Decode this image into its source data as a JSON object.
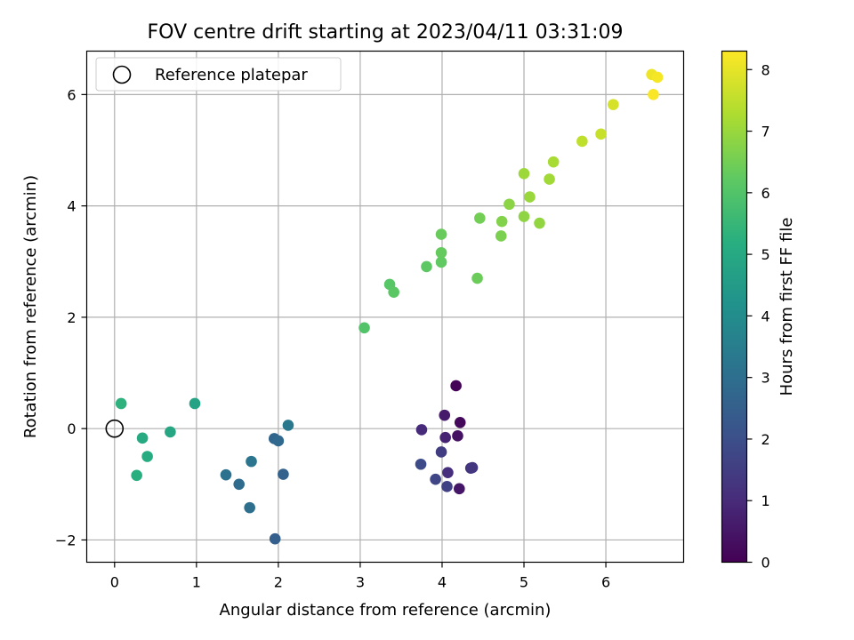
{
  "chart_data": {
    "type": "scatter",
    "title": "FOV centre drift starting at 2023/04/11 03:31:09",
    "xlabel": "Angular distance from reference (arcmin)",
    "ylabel": "Rotation from reference (arcmin)",
    "xlim": [
      -0.34,
      6.95
    ],
    "ylim": [
      -2.4,
      6.78
    ],
    "xticks": [
      0,
      1,
      2,
      3,
      4,
      5,
      6
    ],
    "xtick_labels": [
      "0",
      "1",
      "2",
      "3",
      "4",
      "5",
      "6"
    ],
    "yticks": [
      -2,
      0,
      2,
      4,
      6
    ],
    "ytick_labels": [
      "−2",
      "0",
      "2",
      "4",
      "6"
    ],
    "grid": true,
    "colormap": "viridis",
    "colorbar": {
      "label": "Hours from first FF file",
      "range": [
        0,
        8.3
      ],
      "ticks": [
        0,
        1,
        2,
        3,
        4,
        5,
        6,
        7,
        8
      ],
      "tick_labels": [
        "0",
        "1",
        "2",
        "3",
        "4",
        "5",
        "6",
        "7",
        "8"
      ]
    },
    "legend": {
      "placement": "upper-left",
      "entries": [
        {
          "label": "Reference platepar",
          "marker": "hollow-circle"
        }
      ]
    },
    "reference_point": {
      "x": 0,
      "y": 0
    },
    "points": [
      {
        "x": 4.17,
        "y": 0.77,
        "hours": 0.05
      },
      {
        "x": 4.22,
        "y": 0.11,
        "hours": 0.2
      },
      {
        "x": 4.19,
        "y": -0.13,
        "hours": 0.4
      },
      {
        "x": 4.21,
        "y": -1.08,
        "hours": 0.5
      },
      {
        "x": 4.03,
        "y": 0.24,
        "hours": 0.6
      },
      {
        "x": 4.04,
        "y": -0.16,
        "hours": 0.8
      },
      {
        "x": 3.75,
        "y": -0.02,
        "hours": 1.0
      },
      {
        "x": 4.07,
        "y": -0.79,
        "hours": 1.1
      },
      {
        "x": 4.35,
        "y": -0.71,
        "hours": 1.2
      },
      {
        "x": 4.37,
        "y": -0.7,
        "hours": 1.3
      },
      {
        "x": 3.99,
        "y": -0.42,
        "hours": 1.5
      },
      {
        "x": 4.06,
        "y": -1.04,
        "hours": 1.6
      },
      {
        "x": 3.92,
        "y": -0.91,
        "hours": 1.7
      },
      {
        "x": 3.74,
        "y": -0.64,
        "hours": 1.9
      },
      {
        "x": 1.96,
        "y": -1.98,
        "hours": 2.5
      },
      {
        "x": 2.06,
        "y": -0.82,
        "hours": 2.6
      },
      {
        "x": 1.95,
        "y": -0.18,
        "hours": 2.7
      },
      {
        "x": 2.0,
        "y": -0.22,
        "hours": 2.8
      },
      {
        "x": 1.52,
        "y": -1.0,
        "hours": 2.9
      },
      {
        "x": 1.65,
        "y": -1.42,
        "hours": 3.0
      },
      {
        "x": 1.36,
        "y": -0.83,
        "hours": 3.1
      },
      {
        "x": 1.67,
        "y": -0.59,
        "hours": 3.2
      },
      {
        "x": 2.12,
        "y": 0.06,
        "hours": 3.3
      },
      {
        "x": 0.98,
        "y": 0.45,
        "hours": 4.8
      },
      {
        "x": 0.68,
        "y": -0.06,
        "hours": 4.9
      },
      {
        "x": 0.34,
        "y": -0.17,
        "hours": 5.0
      },
      {
        "x": 0.4,
        "y": -0.5,
        "hours": 5.1
      },
      {
        "x": 0.27,
        "y": -0.84,
        "hours": 5.2
      },
      {
        "x": 0.08,
        "y": 0.45,
        "hours": 5.3
      },
      {
        "x": 3.05,
        "y": 1.81,
        "hours": 6.0
      },
      {
        "x": 3.36,
        "y": 2.59,
        "hours": 6.1
      },
      {
        "x": 3.41,
        "y": 2.45,
        "hours": 6.15
      },
      {
        "x": 3.81,
        "y": 2.91,
        "hours": 6.2
      },
      {
        "x": 3.99,
        "y": 2.99,
        "hours": 6.25
      },
      {
        "x": 3.99,
        "y": 3.16,
        "hours": 6.3
      },
      {
        "x": 3.99,
        "y": 3.49,
        "hours": 6.35
      },
      {
        "x": 4.43,
        "y": 2.7,
        "hours": 6.4
      },
      {
        "x": 4.46,
        "y": 3.78,
        "hours": 6.5
      },
      {
        "x": 4.72,
        "y": 3.46,
        "hours": 6.6
      },
      {
        "x": 4.73,
        "y": 3.72,
        "hours": 6.7
      },
      {
        "x": 4.82,
        "y": 4.03,
        "hours": 6.8
      },
      {
        "x": 5.0,
        "y": 3.81,
        "hours": 6.85
      },
      {
        "x": 5.19,
        "y": 3.69,
        "hours": 6.9
      },
      {
        "x": 5.07,
        "y": 4.16,
        "hours": 7.0
      },
      {
        "x": 5.0,
        "y": 4.58,
        "hours": 7.05
      },
      {
        "x": 5.31,
        "y": 4.48,
        "hours": 7.1
      },
      {
        "x": 5.36,
        "y": 4.79,
        "hours": 7.2
      },
      {
        "x": 5.71,
        "y": 5.16,
        "hours": 7.5
      },
      {
        "x": 5.94,
        "y": 5.29,
        "hours": 7.6
      },
      {
        "x": 6.09,
        "y": 5.82,
        "hours": 7.8
      },
      {
        "x": 6.56,
        "y": 6.36,
        "hours": 8.1
      },
      {
        "x": 6.63,
        "y": 6.31,
        "hours": 8.2
      },
      {
        "x": 6.58,
        "y": 6.0,
        "hours": 8.25
      }
    ]
  }
}
